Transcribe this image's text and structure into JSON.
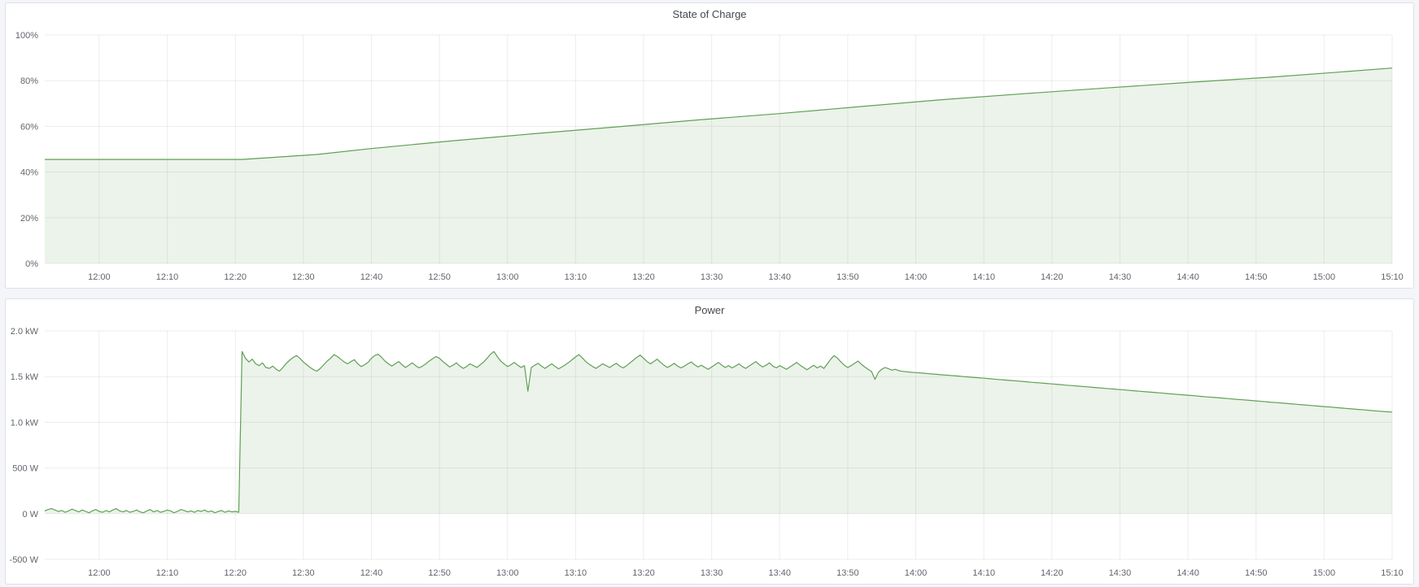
{
  "page": {
    "background": "#f4f5f9",
    "panel_background": "#ffffff",
    "panel_border": "#dde0e6"
  },
  "theme": {
    "series_green": "#5fa055",
    "series_fill": "rgba(95,160,85,0.12)",
    "grid_color": "rgba(20,30,40,0.08)",
    "tick_text_color": "#61656c",
    "title_color": "#44484e"
  },
  "chart_data": [
    {
      "id": "soc",
      "type": "area",
      "title": "State of Charge",
      "ylabel": "",
      "xlabel": "",
      "unit": "%",
      "x_start": "11:52",
      "x_end": "15:10",
      "x_total_minutes": 198,
      "x_tick_labels": [
        "12:00",
        "12:10",
        "12:20",
        "12:30",
        "12:40",
        "12:50",
        "13:00",
        "13:10",
        "13:20",
        "13:30",
        "13:40",
        "13:50",
        "14:00",
        "14:10",
        "14:20",
        "14:30",
        "14:40",
        "14:50",
        "15:00",
        "15:10"
      ],
      "x_tick_minutes": [
        8,
        18,
        28,
        38,
        48,
        58,
        68,
        78,
        88,
        98,
        108,
        118,
        128,
        138,
        148,
        158,
        168,
        178,
        188,
        198
      ],
      "y_range": [
        0,
        100
      ],
      "y_ticks": [
        {
          "v": 0,
          "label": "0%"
        },
        {
          "v": 20,
          "label": "20%"
        },
        {
          "v": 40,
          "label": "40%"
        },
        {
          "v": 60,
          "label": "60%"
        },
        {
          "v": 80,
          "label": "80%"
        },
        {
          "v": 100,
          "label": "100%"
        }
      ],
      "grid": true,
      "legend": false,
      "series": [
        {
          "name": "State of Charge",
          "points": [
            [
              0,
              45.5
            ],
            [
              29,
              45.5
            ],
            [
              40,
              47.7
            ],
            [
              48,
              50.3
            ],
            [
              60,
              53.7
            ],
            [
              72,
              56.8
            ],
            [
              85,
              60.0
            ],
            [
              96,
              62.8
            ],
            [
              108,
              65.6
            ],
            [
              120,
              68.7
            ],
            [
              132,
              71.7
            ],
            [
              144,
              74.3
            ],
            [
              156,
              76.8
            ],
            [
              168,
              79.2
            ],
            [
              180,
              81.5
            ],
            [
              190,
              83.7
            ],
            [
              198,
              85.5
            ]
          ]
        }
      ]
    },
    {
      "id": "power",
      "type": "area",
      "title": "Power",
      "ylabel": "",
      "xlabel": "",
      "unit": "W",
      "x_start": "11:52",
      "x_end": "15:10",
      "x_total_minutes": 198,
      "x_tick_labels": [
        "12:00",
        "12:10",
        "12:20",
        "12:30",
        "12:40",
        "12:50",
        "13:00",
        "13:10",
        "13:20",
        "13:30",
        "13:40",
        "13:50",
        "14:00",
        "14:10",
        "14:20",
        "14:30",
        "14:40",
        "14:50",
        "15:00",
        "15:10"
      ],
      "x_tick_minutes": [
        8,
        18,
        28,
        38,
        48,
        58,
        68,
        78,
        88,
        98,
        108,
        118,
        128,
        138,
        148,
        158,
        168,
        178,
        188,
        198
      ],
      "y_range": [
        -500,
        2000
      ],
      "y_ticks": [
        {
          "v": -500,
          "label": "-500 W"
        },
        {
          "v": 0,
          "label": "0 W"
        },
        {
          "v": 500,
          "label": "500 W"
        },
        {
          "v": 1000,
          "label": "1.0 kW"
        },
        {
          "v": 1500,
          "label": "1.5 kW"
        },
        {
          "v": 2000,
          "label": "2.0 kW"
        }
      ],
      "grid": true,
      "legend": false,
      "series": [
        {
          "name": "Power",
          "segments": [
            {
              "t0": 0,
              "step": 0.5,
              "values": [
                30,
                45,
                55,
                40,
                25,
                35,
                15,
                30,
                50,
                35,
                20,
                40,
                25,
                10,
                30,
                45,
                25,
                15,
                35,
                20,
                40,
                55,
                30,
                20,
                35,
                15,
                25,
                40,
                20,
                10,
                30,
                45,
                20,
                35,
                15,
                25,
                40,
                30,
                10,
                25,
                45,
                35,
                20,
                30,
                15,
                35,
                25,
                40,
                20,
                30,
                10,
                25,
                35,
                15,
                30,
                20,
                25,
                15
              ]
            },
            {
              "t0": 29,
              "step": 0.5,
              "values": [
                1775,
                1700,
                1660,
                1690,
                1640,
                1620,
                1650,
                1600,
                1590,
                1615,
                1580,
                1560,
                1600,
                1645,
                1680,
                1710,
                1730,
                1700,
                1660,
                1630,
                1600,
                1575,
                1560,
                1590,
                1630,
                1670,
                1700,
                1740,
                1720,
                1690,
                1660,
                1640,
                1665,
                1685,
                1640,
                1610,
                1630,
                1655,
                1700,
                1730,
                1745,
                1710,
                1670,
                1640,
                1615,
                1640,
                1665,
                1630,
                1600,
                1625,
                1650,
                1620,
                1595,
                1615,
                1640,
                1670,
                1695,
                1720,
                1700,
                1665,
                1635,
                1605,
                1625,
                1650,
                1615,
                1590,
                1610,
                1640,
                1620,
                1600,
                1630,
                1660,
                1700,
                1745,
                1775,
                1720,
                1670,
                1640,
                1610,
                1630,
                1655,
                1625,
                1600,
                1620,
                1340,
                1600,
                1625,
                1645,
                1615,
                1590,
                1615,
                1640,
                1610,
                1585,
                1605,
                1630,
                1655,
                1685,
                1715,
                1740,
                1705,
                1665,
                1635,
                1610,
                1590,
                1615,
                1640,
                1620,
                1600,
                1625,
                1645,
                1615,
                1595,
                1620,
                1650,
                1680,
                1710,
                1735,
                1700,
                1665,
                1640,
                1665,
                1690,
                1655,
                1625,
                1600,
                1620,
                1645,
                1615,
                1595,
                1615,
                1640,
                1660,
                1630,
                1605,
                1625,
                1600,
                1580,
                1605,
                1630,
                1655,
                1625,
                1600,
                1620,
                1595,
                1615,
                1640,
                1610,
                1590,
                1615,
                1640,
                1665,
                1630,
                1605,
                1625,
                1650,
                1615,
                1595,
                1620,
                1600,
                1580,
                1605,
                1630,
                1655,
                1625,
                1600,
                1575,
                1600,
                1625,
                1595,
                1615,
                1590,
                1640,
                1690,
                1730,
                1700,
                1660,
                1625,
                1600,
                1620,
                1645,
                1670,
                1635,
                1605,
                1580,
                1555,
                1470,
                1545,
                1580,
                1600,
                1585,
                1570,
                1580,
                1565,
                1558
              ]
            },
            {
              "t0": 127,
              "step": 1,
              "values": [
                1550,
                1544,
                1538,
                1531,
                1525,
                1519,
                1513,
                1507,
                1500,
                1494,
                1488,
                1482,
                1476,
                1469,
                1463,
                1457,
                1451,
                1445,
                1438,
                1432,
                1426,
                1420,
                1414,
                1407,
                1401,
                1395,
                1389,
                1383,
                1376,
                1370,
                1364,
                1358,
                1352,
                1345,
                1339,
                1333,
                1327,
                1321,
                1314,
                1308,
                1302,
                1296,
                1290,
                1283,
                1277,
                1271,
                1265,
                1259,
                1252,
                1246,
                1240,
                1234,
                1228,
                1221,
                1215,
                1209,
                1203,
                1197,
                1190,
                1184,
                1178,
                1172,
                1166,
                1159,
                1153,
                1147,
                1141,
                1135,
                1128,
                1122,
                1116,
                1112
              ]
            }
          ]
        }
      ]
    }
  ]
}
